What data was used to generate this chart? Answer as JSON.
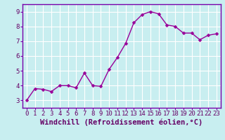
{
  "x": [
    0,
    1,
    2,
    3,
    4,
    5,
    6,
    7,
    8,
    9,
    10,
    11,
    12,
    13,
    14,
    15,
    16,
    17,
    18,
    19,
    20,
    21,
    22,
    23
  ],
  "y": [
    3.0,
    3.8,
    3.75,
    3.6,
    4.0,
    4.0,
    3.85,
    4.85,
    4.0,
    3.95,
    5.1,
    5.9,
    6.85,
    8.25,
    8.8,
    9.0,
    8.85,
    8.1,
    8.0,
    7.55,
    7.55,
    7.1,
    7.4,
    7.5
  ],
  "line_color": "#990099",
  "marker": "D",
  "marker_size": 2.5,
  "linewidth": 1.0,
  "xlabel": "Windchill (Refroidissement éolien,°C)",
  "xlabel_fontsize": 7.5,
  "bg_color": "#c8eef0",
  "grid_color": "#ffffff",
  "ylim": [
    2.5,
    9.5
  ],
  "xlim": [
    -0.5,
    23.5
  ],
  "yticks": [
    3,
    4,
    5,
    6,
    7,
    8,
    9
  ],
  "xticks": [
    0,
    1,
    2,
    3,
    4,
    5,
    6,
    7,
    8,
    9,
    10,
    11,
    12,
    13,
    14,
    15,
    16,
    17,
    18,
    19,
    20,
    21,
    22,
    23
  ],
  "tick_label_fontsize": 6.5,
  "spine_color": "#7700aa",
  "tick_color": "#7700aa"
}
